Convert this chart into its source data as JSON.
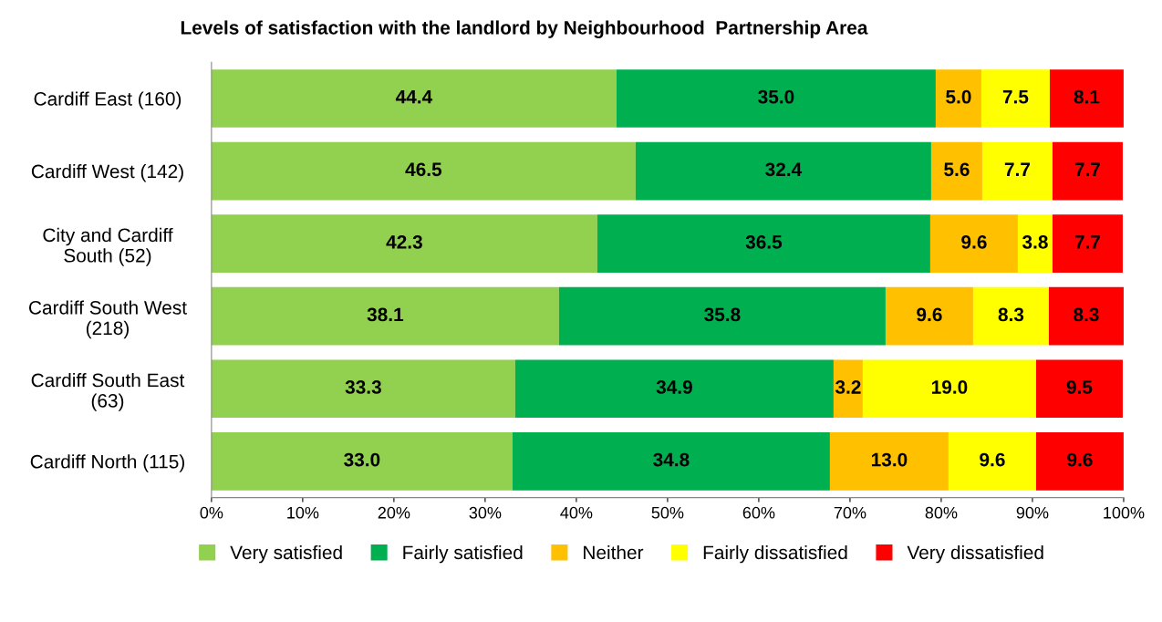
{
  "chart_data": {
    "type": "bar",
    "orientation": "horizontal",
    "stacked": true,
    "title": "Levels of satisfaction with the landlord by Neighbourhood  Partnership Area",
    "categories": [
      "Cardiff East (160)",
      "Cardiff West (142)",
      "City and Cardiff\nSouth (52)",
      "Cardiff South West\n(218)",
      "Cardiff South East\n(63)",
      "Cardiff North (115)"
    ],
    "series": [
      {
        "name": "Very satisfied",
        "color": "#92d050",
        "values": [
          44.4,
          46.5,
          42.3,
          38.1,
          33.3,
          33.0
        ],
        "value_labels": [
          "44.4",
          "46.5",
          "42.3",
          "38.1",
          "33.3",
          "33.0"
        ]
      },
      {
        "name": "Fairly satisfied",
        "color": "#00b050",
        "values": [
          35.0,
          32.4,
          36.5,
          35.8,
          34.9,
          34.8
        ],
        "value_labels": [
          "35.0",
          "32.4",
          "36.5",
          "35.8",
          "34.9",
          "34.8"
        ]
      },
      {
        "name": "Neither",
        "color": "#ffc000",
        "values": [
          5.0,
          5.6,
          9.6,
          9.6,
          3.2,
          13.0
        ],
        "value_labels": [
          "5.0",
          "5.6",
          "9.6",
          "9.6",
          "3.2",
          "13.0"
        ]
      },
      {
        "name": "Fairly dissatisfied",
        "color": "#ffff00",
        "values": [
          7.5,
          7.7,
          3.8,
          8.3,
          19.0,
          9.6
        ],
        "value_labels": [
          "7.5",
          "7.7",
          "3.8",
          "8.3",
          "19.0",
          "9.6"
        ]
      },
      {
        "name": "Very dissatisfied",
        "color": "#ff0000",
        "values": [
          8.1,
          7.7,
          7.7,
          8.3,
          9.5,
          9.6
        ],
        "value_labels": [
          "8.1",
          "7.7",
          "7.7",
          "8.3",
          "9.5",
          "9.6"
        ]
      }
    ],
    "xlim": [
      0,
      100
    ],
    "xticks": [
      {
        "value": 0,
        "label": "0%"
      },
      {
        "value": 10,
        "label": "10%"
      },
      {
        "value": 20,
        "label": "20%"
      },
      {
        "value": 30,
        "label": "30%"
      },
      {
        "value": 40,
        "label": "40%"
      },
      {
        "value": 50,
        "label": "50%"
      },
      {
        "value": 60,
        "label": "60%"
      },
      {
        "value": 70,
        "label": "70%"
      },
      {
        "value": 80,
        "label": "80%"
      },
      {
        "value": 90,
        "label": "90%"
      },
      {
        "value": 100,
        "label": "100%"
      }
    ],
    "legend": "bottom"
  }
}
